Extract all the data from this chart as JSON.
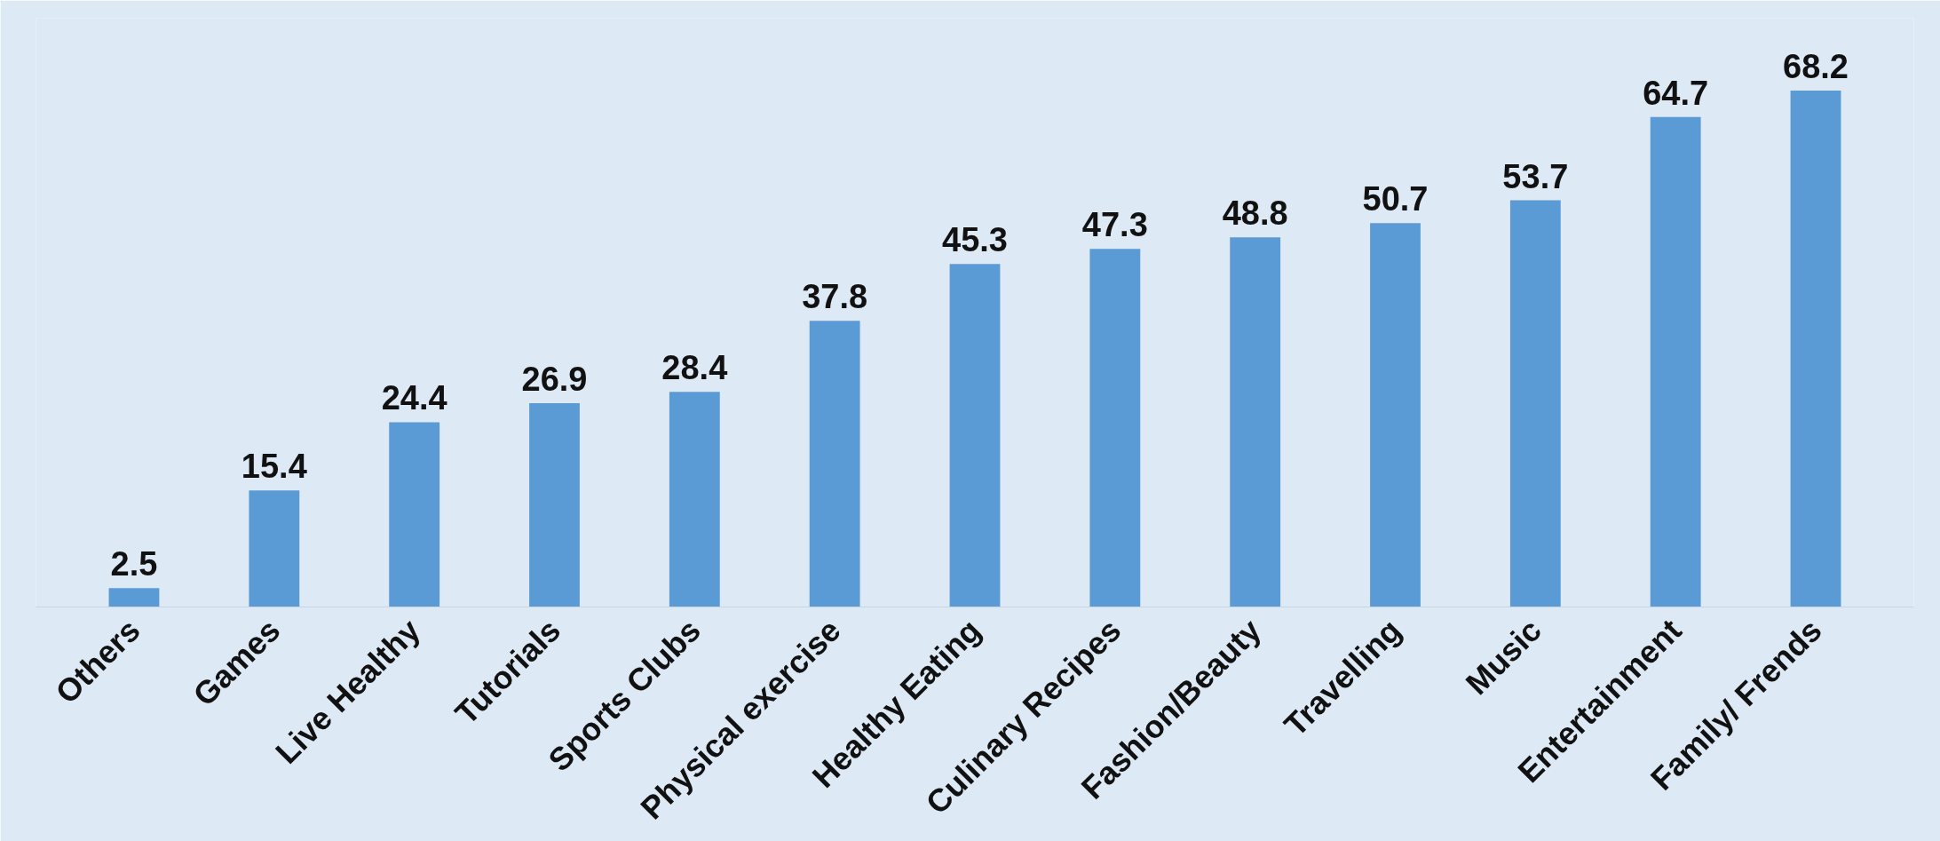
{
  "chart_data": {
    "type": "bar",
    "categories": [
      "Others",
      "Games",
      "Live Healthy",
      "Tutorials",
      "Sports Clubs",
      "Physical exercise",
      "Healthy Eating",
      "Culinary Recipes",
      "Fashion/Beauty",
      "Travelling",
      "Music",
      "Entertainment",
      "Family/ Frends"
    ],
    "values": [
      2.5,
      15.4,
      24.4,
      26.9,
      28.4,
      37.8,
      45.3,
      47.3,
      48.8,
      50.7,
      53.7,
      64.7,
      68.2
    ],
    "color": "#5b9bd5",
    "data_labels": true,
    "grid": false,
    "tick_labels": "x"
  }
}
